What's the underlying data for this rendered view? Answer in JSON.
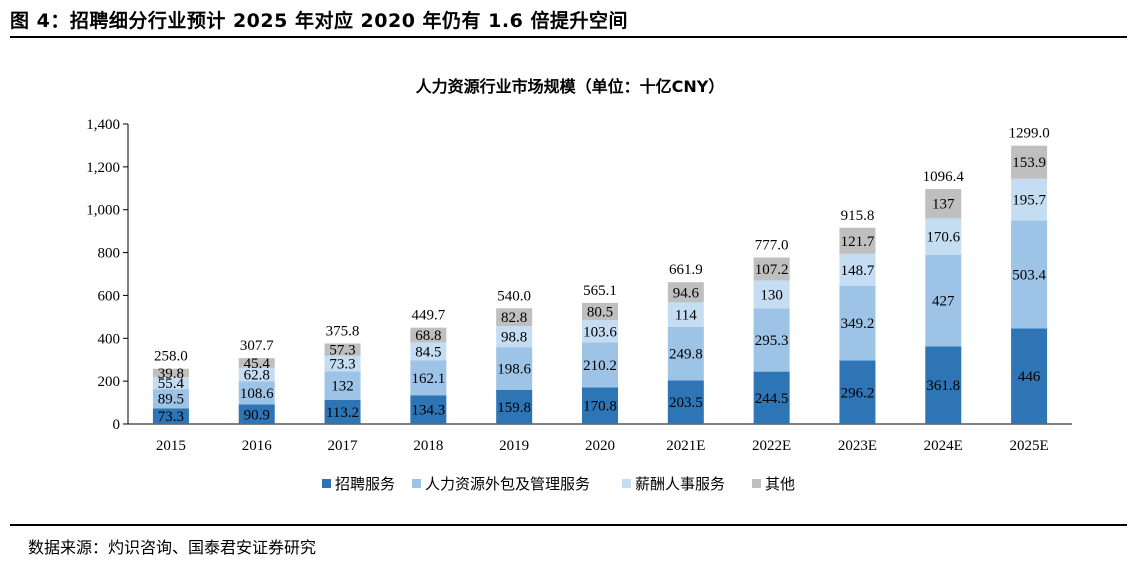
{
  "figure_title": "图 4：招聘细分行业预计 2025 年对应 2020 年仍有 1.6 倍提升空间",
  "source_note": "数据来源：灼识咨询、国泰君安证券研究",
  "colors": {
    "recruitment": "#2E75B6",
    "outsourcing": "#9DC3E6",
    "payroll": "#C5DDF2",
    "other": "#BFBFBF"
  },
  "chart_data": {
    "type": "bar",
    "stacked": true,
    "title": "人力资源行业市场规模（单位：十亿CNY）",
    "xlabel": "",
    "ylabel": "",
    "categories": [
      "2015",
      "2016",
      "2017",
      "2018",
      "2019",
      "2020",
      "2021E",
      "2022E",
      "2023E",
      "2024E",
      "2025E"
    ],
    "ylim": [
      0,
      1400
    ],
    "yticks": [
      0,
      200,
      400,
      600,
      800,
      1000,
      1200,
      1400
    ],
    "ytick_labels": [
      "0",
      "200",
      "400",
      "600",
      "800",
      "1,000",
      "1,200",
      "1,400"
    ],
    "grid": false,
    "legend_position": "bottom",
    "series": [
      {
        "name": "招聘服务",
        "color_key": "recruitment",
        "values": [
          73.3,
          90.9,
          113.2,
          134.3,
          159.8,
          170.8,
          203.5,
          244.5,
          296.2,
          361.8,
          446
        ],
        "labels": [
          "73.3",
          "90.9",
          "113.2",
          "134.3",
          "159.8",
          "170.8",
          "203.5",
          "244.5",
          "296.2",
          "361.8",
          "446"
        ]
      },
      {
        "name": "人力资源外包及管理服务",
        "color_key": "outsourcing",
        "values": [
          89.5,
          108.6,
          132,
          162.1,
          198.6,
          210.2,
          249.8,
          295.3,
          349.2,
          427,
          503.4
        ],
        "labels": [
          "89.5",
          "108.6",
          "132",
          "162.1",
          "198.6",
          "210.2",
          "249.8",
          "295.3",
          "349.2",
          "427",
          "503.4"
        ]
      },
      {
        "name": "薪酬人事服务",
        "color_key": "payroll",
        "values": [
          55.4,
          62.8,
          73.3,
          84.5,
          98.8,
          103.6,
          114,
          130,
          148.7,
          170.6,
          195.7
        ],
        "labels": [
          "55.4",
          "62.8",
          "73.3",
          "84.5",
          "98.8",
          "103.6",
          "114",
          "130",
          "148.7",
          "170.6",
          "195.7"
        ]
      },
      {
        "name": "其他",
        "color_key": "other",
        "values": [
          39.8,
          45.4,
          57.3,
          68.8,
          82.8,
          80.5,
          94.6,
          107.2,
          121.7,
          137,
          153.9
        ],
        "labels": [
          "39.8",
          "45.4",
          "57.3",
          "68.8",
          "82.8",
          "80.5",
          "94.6",
          "107.2",
          "121.7",
          "137",
          "153.9"
        ]
      }
    ],
    "totals": [
      258.0,
      307.7,
      375.8,
      449.7,
      540.0,
      565.1,
      661.9,
      777.0,
      915.8,
      1096.4,
      1299.0
    ],
    "total_labels": [
      "258.0",
      "307.7",
      "375.8",
      "449.7",
      "540.0",
      "565.1",
      "661.9",
      "777.0",
      "915.8",
      "1096.4",
      "1299.0"
    ]
  }
}
